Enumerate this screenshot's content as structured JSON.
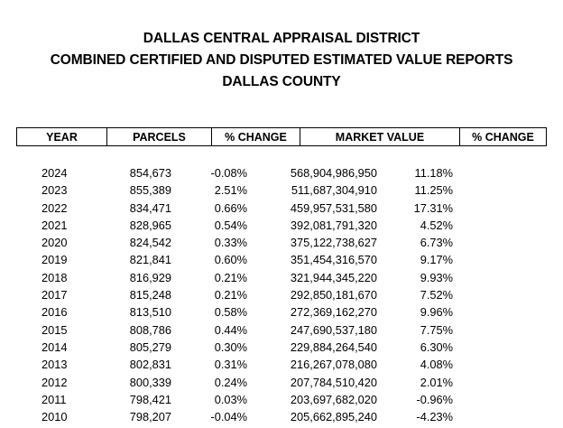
{
  "header": {
    "title_line_1": "DALLAS CENTRAL APPRAISAL DISTRICT",
    "title_line_2": "COMBINED CERTIFIED AND DISPUTED ESTIMATED VALUE REPORTS",
    "title_line_3": "DALLAS COUNTY"
  },
  "table": {
    "columns": [
      "YEAR",
      "PARCELS",
      "% CHANGE",
      "MARKET VALUE",
      "% CHANGE"
    ],
    "rows": [
      {
        "year": "2024",
        "parcels": "854,673",
        "parcels_change": "-0.08%",
        "market_value": "568,904,986,950",
        "value_change": "11.18%"
      },
      {
        "year": "2023",
        "parcels": "855,389",
        "parcels_change": "2.51%",
        "market_value": "511,687,304,910",
        "value_change": "11.25%"
      },
      {
        "year": "2022",
        "parcels": "834,471",
        "parcels_change": "0.66%",
        "market_value": "459,957,531,580",
        "value_change": "17.31%"
      },
      {
        "year": "2021",
        "parcels": "828,965",
        "parcels_change": "0.54%",
        "market_value": "392,081,791,320",
        "value_change": "4.52%"
      },
      {
        "year": "2020",
        "parcels": "824,542",
        "parcels_change": "0.33%",
        "market_value": "375,122,738,627",
        "value_change": "6.73%"
      },
      {
        "year": "2019",
        "parcels": "821,841",
        "parcels_change": "0.60%",
        "market_value": "351,454,316,570",
        "value_change": "9.17%"
      },
      {
        "year": "2018",
        "parcels": "816,929",
        "parcels_change": "0.21%",
        "market_value": "321,944,345,220",
        "value_change": "9.93%"
      },
      {
        "year": "2017",
        "parcels": "815,248",
        "parcels_change": "0.21%",
        "market_value": "292,850,181,670",
        "value_change": "7.52%"
      },
      {
        "year": "2016",
        "parcels": "813,510",
        "parcels_change": "0.58%",
        "market_value": "272,369,162,270",
        "value_change": "9.96%"
      },
      {
        "year": "2015",
        "parcels": "808,786",
        "parcels_change": "0.44%",
        "market_value": "247,690,537,180",
        "value_change": "7.75%"
      },
      {
        "year": "2014",
        "parcels": "805,279",
        "parcels_change": "0.30%",
        "market_value": "229,884,264,540",
        "value_change": "6.30%"
      },
      {
        "year": "2013",
        "parcels": "802,831",
        "parcels_change": "0.31%",
        "market_value": "216,267,078,080",
        "value_change": "4.08%"
      },
      {
        "year": "2012",
        "parcels": "800,339",
        "parcels_change": "0.24%",
        "market_value": "207,784,510,420",
        "value_change": "2.01%"
      },
      {
        "year": "2011",
        "parcels": "798,421",
        "parcels_change": "0.03%",
        "market_value": "203,697,682,020",
        "value_change": "-0.96%"
      },
      {
        "year": "2010",
        "parcels": "798,207",
        "parcels_change": "-0.04%",
        "market_value": "205,662,895,240",
        "value_change": "-4.23%"
      }
    ]
  }
}
